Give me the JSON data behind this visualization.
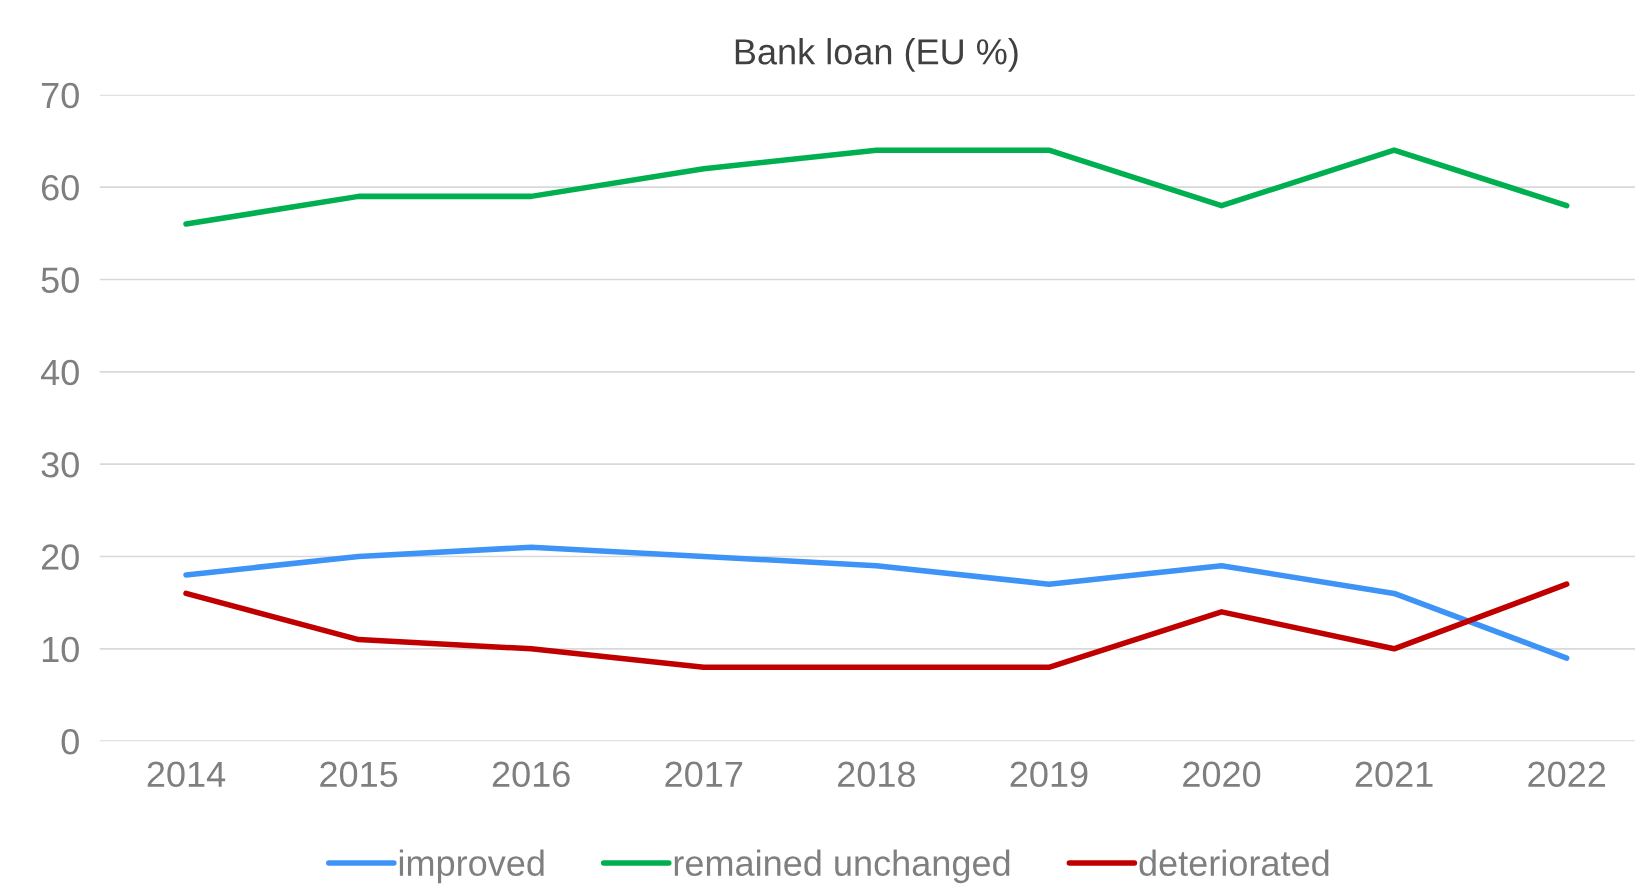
{
  "chart_data": {
    "type": "line",
    "title": "Bank loan (EU %)",
    "categories": [
      "2014",
      "2015",
      "2016",
      "2017",
      "2018",
      "2019",
      "2020",
      "2021",
      "2022"
    ],
    "series": [
      {
        "name": "improved",
        "color": "#3d94f6",
        "values": [
          18,
          20,
          21,
          20,
          19,
          17,
          19,
          16,
          9
        ]
      },
      {
        "name": "remained unchanged",
        "color": "#00b050",
        "values": [
          56,
          59,
          59,
          62,
          64,
          64,
          58,
          64,
          58
        ]
      },
      {
        "name": "deteriorated",
        "color": "#c00000",
        "values": [
          16,
          11,
          10,
          8,
          8,
          8,
          14,
          10,
          17
        ]
      }
    ],
    "ylim": [
      0,
      70
    ],
    "yticks": [
      0,
      10,
      20,
      30,
      40,
      50,
      60,
      70
    ],
    "grid": "y",
    "legend": "bottom",
    "marker": "none",
    "line_style": "solid"
  }
}
